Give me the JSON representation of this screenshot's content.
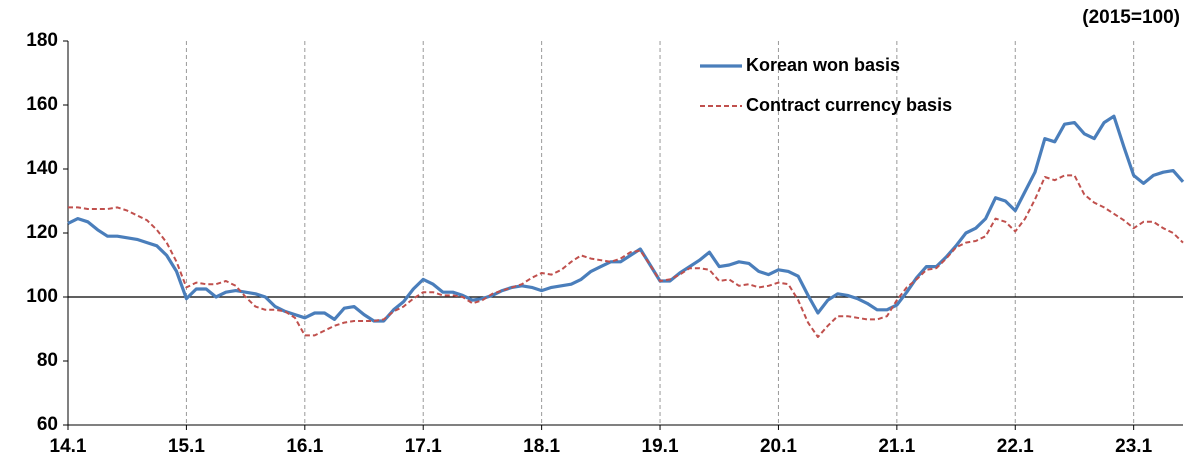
{
  "chart_data": {
    "type": "line",
    "subtitle": "(2015=100)",
    "categories": [
      "14.1",
      null,
      null,
      null,
      null,
      null,
      null,
      null,
      null,
      null,
      null,
      null,
      "15.1",
      null,
      null,
      null,
      null,
      null,
      null,
      null,
      null,
      null,
      null,
      null,
      "16.1",
      null,
      null,
      null,
      null,
      null,
      null,
      null,
      null,
      null,
      null,
      null,
      "17.1",
      null,
      null,
      null,
      null,
      null,
      null,
      null,
      null,
      null,
      null,
      null,
      "18.1",
      null,
      null,
      null,
      null,
      null,
      null,
      null,
      null,
      null,
      null,
      null,
      "19.1",
      null,
      null,
      null,
      null,
      null,
      null,
      null,
      null,
      null,
      null,
      null,
      "20.1",
      null,
      null,
      null,
      null,
      null,
      null,
      null,
      null,
      null,
      null,
      null,
      "21.1",
      null,
      null,
      null,
      null,
      null,
      null,
      null,
      null,
      null,
      null,
      null,
      "22.1",
      null,
      null,
      null,
      null,
      null,
      null,
      null,
      null,
      null,
      null,
      null,
      "23.1",
      null,
      null,
      null,
      null,
      null
    ],
    "series": [
      {
        "name": "Korean won basis",
        "color": "#4a7ebb",
        "dash": false,
        "values": [
          123,
          124.5,
          123.5,
          121,
          119,
          119,
          118.5,
          118,
          117,
          116,
          113,
          108,
          99.5,
          102.5,
          102.5,
          100,
          101.5,
          102,
          101.5,
          101,
          100,
          97,
          95.5,
          94.5,
          93.5,
          95,
          95,
          93,
          96.5,
          97,
          94.5,
          92.5,
          92.5,
          96,
          98.5,
          102.5,
          105.5,
          104,
          101.5,
          101.5,
          100.5,
          99,
          99.5,
          100.5,
          102,
          103,
          103.5,
          103,
          102,
          103,
          103.5,
          104,
          105.5,
          108,
          109.5,
          111,
          111,
          113,
          115,
          110,
          105,
          105,
          107.5,
          109.5,
          111.5,
          114,
          109.5,
          110,
          111,
          110.5,
          108,
          107,
          108.5,
          108,
          106.5,
          100.5,
          95,
          99,
          101,
          100.5,
          99.5,
          98,
          96,
          96,
          97.5,
          101.5,
          106,
          109.5,
          109.5,
          112.5,
          116,
          120,
          121.5,
          124.5,
          131,
          130,
          127,
          133,
          139,
          149.5,
          148.5,
          154,
          154.5,
          151,
          149.5,
          154.5,
          156.5,
          147,
          138,
          135.5,
          138,
          139,
          139.5,
          136
        ]
      },
      {
        "name": "Contract currency basis",
        "color": "#c0504d",
        "dash": true,
        "values": [
          128,
          128,
          127.5,
          127.5,
          127.5,
          128,
          127,
          125.5,
          124,
          121,
          117,
          111,
          103,
          104.5,
          104,
          104,
          105,
          103.5,
          100,
          97,
          96,
          96,
          95.5,
          93.5,
          88,
          88,
          89.5,
          91,
          92,
          92.5,
          92.5,
          92.5,
          93,
          95.5,
          97,
          99.5,
          101.5,
          101.5,
          100.5,
          100.5,
          100,
          98,
          99,
          101,
          102,
          103,
          104,
          106,
          107.5,
          107,
          108.5,
          111,
          113,
          112,
          111.5,
          111,
          112,
          114,
          114.5,
          110,
          105,
          105.5,
          107,
          109,
          109,
          108.5,
          105,
          105.5,
          103.5,
          104,
          103,
          103.5,
          104.5,
          104,
          99,
          92,
          87.5,
          91,
          94,
          94,
          93.5,
          93,
          93,
          94,
          99,
          103,
          105.5,
          108.5,
          109,
          112,
          115.5,
          117,
          117.5,
          119,
          124.5,
          123.5,
          120.5,
          124.5,
          130.5,
          137.5,
          136.5,
          138,
          138,
          132,
          129.5,
          128,
          126,
          124,
          121.5,
          123.5,
          123.5,
          121.5,
          120,
          117
        ]
      }
    ],
    "ylim": [
      60,
      180
    ],
    "yticks": [
      60,
      80,
      100,
      120,
      140,
      160,
      180
    ],
    "reference_line": 100,
    "x_grid": "dashed",
    "legend": "top-right"
  }
}
